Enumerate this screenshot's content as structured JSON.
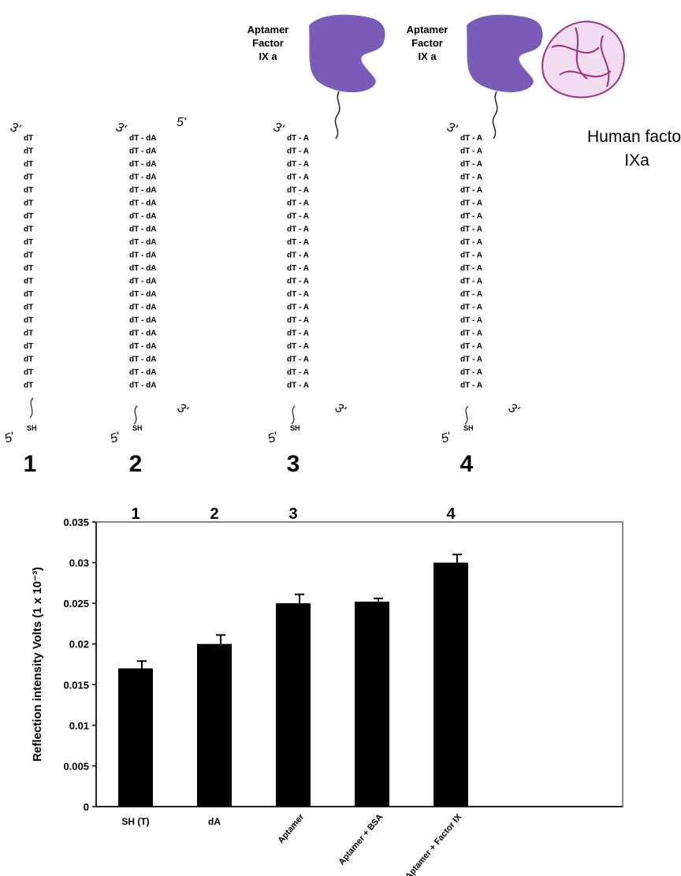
{
  "diagram": {
    "strands": [
      {
        "number": "1",
        "end_top": "3'",
        "end_bottom": "5'",
        "thiol": "SH",
        "bases": [
          "dT",
          "dT",
          "dT",
          "dT",
          "dT",
          "dT",
          "dT",
          "dT",
          "dT",
          "dT",
          "dT",
          "dT",
          "dT",
          "dT",
          "dT",
          "dT",
          "dT",
          "dT",
          "dT",
          "dT"
        ]
      },
      {
        "number": "2",
        "end_top": "3'",
        "end_top_right": "5'",
        "end_bottom": "5'",
        "end_bottom_right": "3'",
        "thiol": "SH",
        "bases": [
          "dT - dA",
          "dT - dA",
          "dT - dA",
          "dT - dA",
          "dT - dA",
          "dT - dA",
          "dT - dA",
          "dT - dA",
          "dT - dA",
          "dT - dA",
          "dT - dA",
          "dT - dA",
          "dT - dA",
          "dT - dA",
          "dT - dA",
          "dT - dA",
          "dT - dA",
          "dT - dA",
          "dT - dA",
          "dT - dA"
        ]
      },
      {
        "number": "3",
        "end_top": "3'",
        "end_bottom": "5'",
        "end_bottom_right": "3'",
        "thiol": "SH",
        "bases": [
          "dT - A",
          "dT - A",
          "dT - A",
          "dT - A",
          "dT - A",
          "dT - A",
          "dT - A",
          "dT - A",
          "dT - A",
          "dT - A",
          "dT - A",
          "dT - A",
          "dT - A",
          "dT - A",
          "dT - A",
          "dT - A",
          "dT - A",
          "dT - A",
          "dT - A",
          "dT - A"
        ]
      },
      {
        "number": "4",
        "end_top": "3'",
        "end_bottom": "5'",
        "end_bottom_right": "3'",
        "thiol": "SH",
        "bases": [
          "dT - A",
          "dT - A",
          "dT - A",
          "dT - A",
          "dT - A",
          "dT - A",
          "dT - A",
          "dT - A",
          "dT - A",
          "dT - A",
          "dT - A",
          "dT - A",
          "dT - A",
          "dT - A",
          "dT - A",
          "dT - A",
          "dT - A",
          "dT - A",
          "dT - A",
          "dT - A"
        ]
      }
    ],
    "aptamer_labels": [
      [
        "Aptamer",
        "Factor",
        "IX a"
      ],
      [
        "Aptamer",
        "Factor",
        "IX a"
      ]
    ],
    "protein_label": [
      "Human factor",
      "IXa"
    ]
  },
  "chart_data": {
    "type": "bar",
    "y_label": "Reflection intensity Volts (1 x 10⁻³)",
    "categories": [
      "SH (T)",
      "dA",
      "Aptamer",
      "Aptamer + BSA",
      "Aptamer + Factor IX"
    ],
    "group_labels": [
      "1",
      "2",
      "3",
      null,
      "4"
    ],
    "values": [
      0.017,
      0.02,
      0.025,
      0.0252,
      0.03
    ],
    "errors": [
      0.0009,
      0.0011,
      0.0011,
      0.0004,
      0.001
    ],
    "color": "#000000",
    "ylim": [
      0,
      0.035
    ],
    "yticks": [
      0,
      0.005,
      0.01,
      0.015,
      0.02,
      0.025,
      0.03,
      0.035
    ]
  }
}
